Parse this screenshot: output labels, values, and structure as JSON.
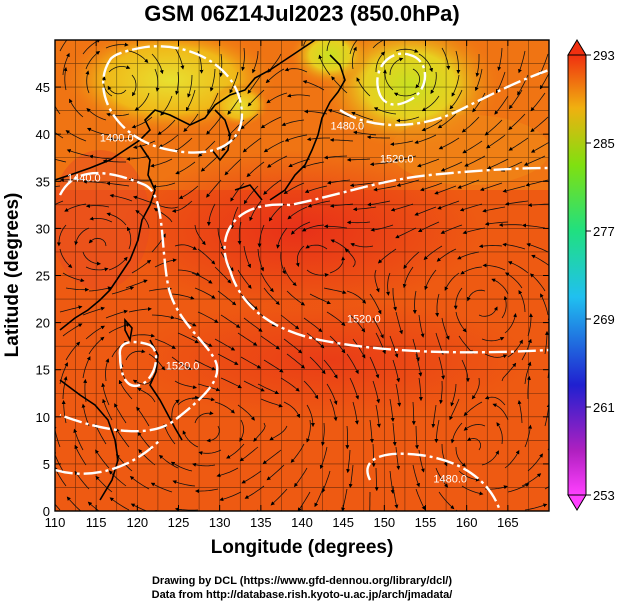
{
  "title": "GSM 06Z14Jul2023 (850.0hPa)",
  "x_axis": {
    "label": "Longitude (degrees)",
    "range": [
      110,
      170
    ],
    "ticks": [
      "110",
      "115",
      "120",
      "125",
      "130",
      "135",
      "140",
      "145",
      "150",
      "155",
      "160",
      "165"
    ]
  },
  "y_axis": {
    "label": "Latitude  (degrees)",
    "range": [
      0,
      50
    ],
    "ticks": [
      "0",
      "5",
      "10",
      "15",
      "20",
      "25",
      "30",
      "35",
      "40",
      "45"
    ]
  },
  "colorbar": {
    "ticks": [
      "293",
      "285",
      "277",
      "269",
      "261",
      "253"
    ],
    "range": [
      253,
      293
    ]
  },
  "contour_labels": [
    {
      "text": "1400.0",
      "lon": 117.5,
      "lat": 39.2
    },
    {
      "text": "1440.0",
      "lon": 113.5,
      "lat": 35.0
    },
    {
      "text": "1480.0",
      "lon": 145.5,
      "lat": 40.5
    },
    {
      "text": "1520.0",
      "lon": 151.5,
      "lat": 37.0
    },
    {
      "text": "1520.0",
      "lon": 147.5,
      "lat": 20.0
    },
    {
      "text": "1520.0",
      "lon": 125.5,
      "lat": 15.0
    },
    {
      "text": "1480.0",
      "lon": 158.0,
      "lat": 3.0
    }
  ],
  "credits": {
    "line1": "Drawing by DCL (https://www.gfd-dennou.org/library/dcl/)",
    "line2": "Data from http://database.rish.kyoto-u.ac.jp/arch/jmadata/"
  },
  "colors": {
    "warm": "#e8381a",
    "mid": "#f07010",
    "cool": "#e8e020",
    "green": "#50d010"
  }
}
